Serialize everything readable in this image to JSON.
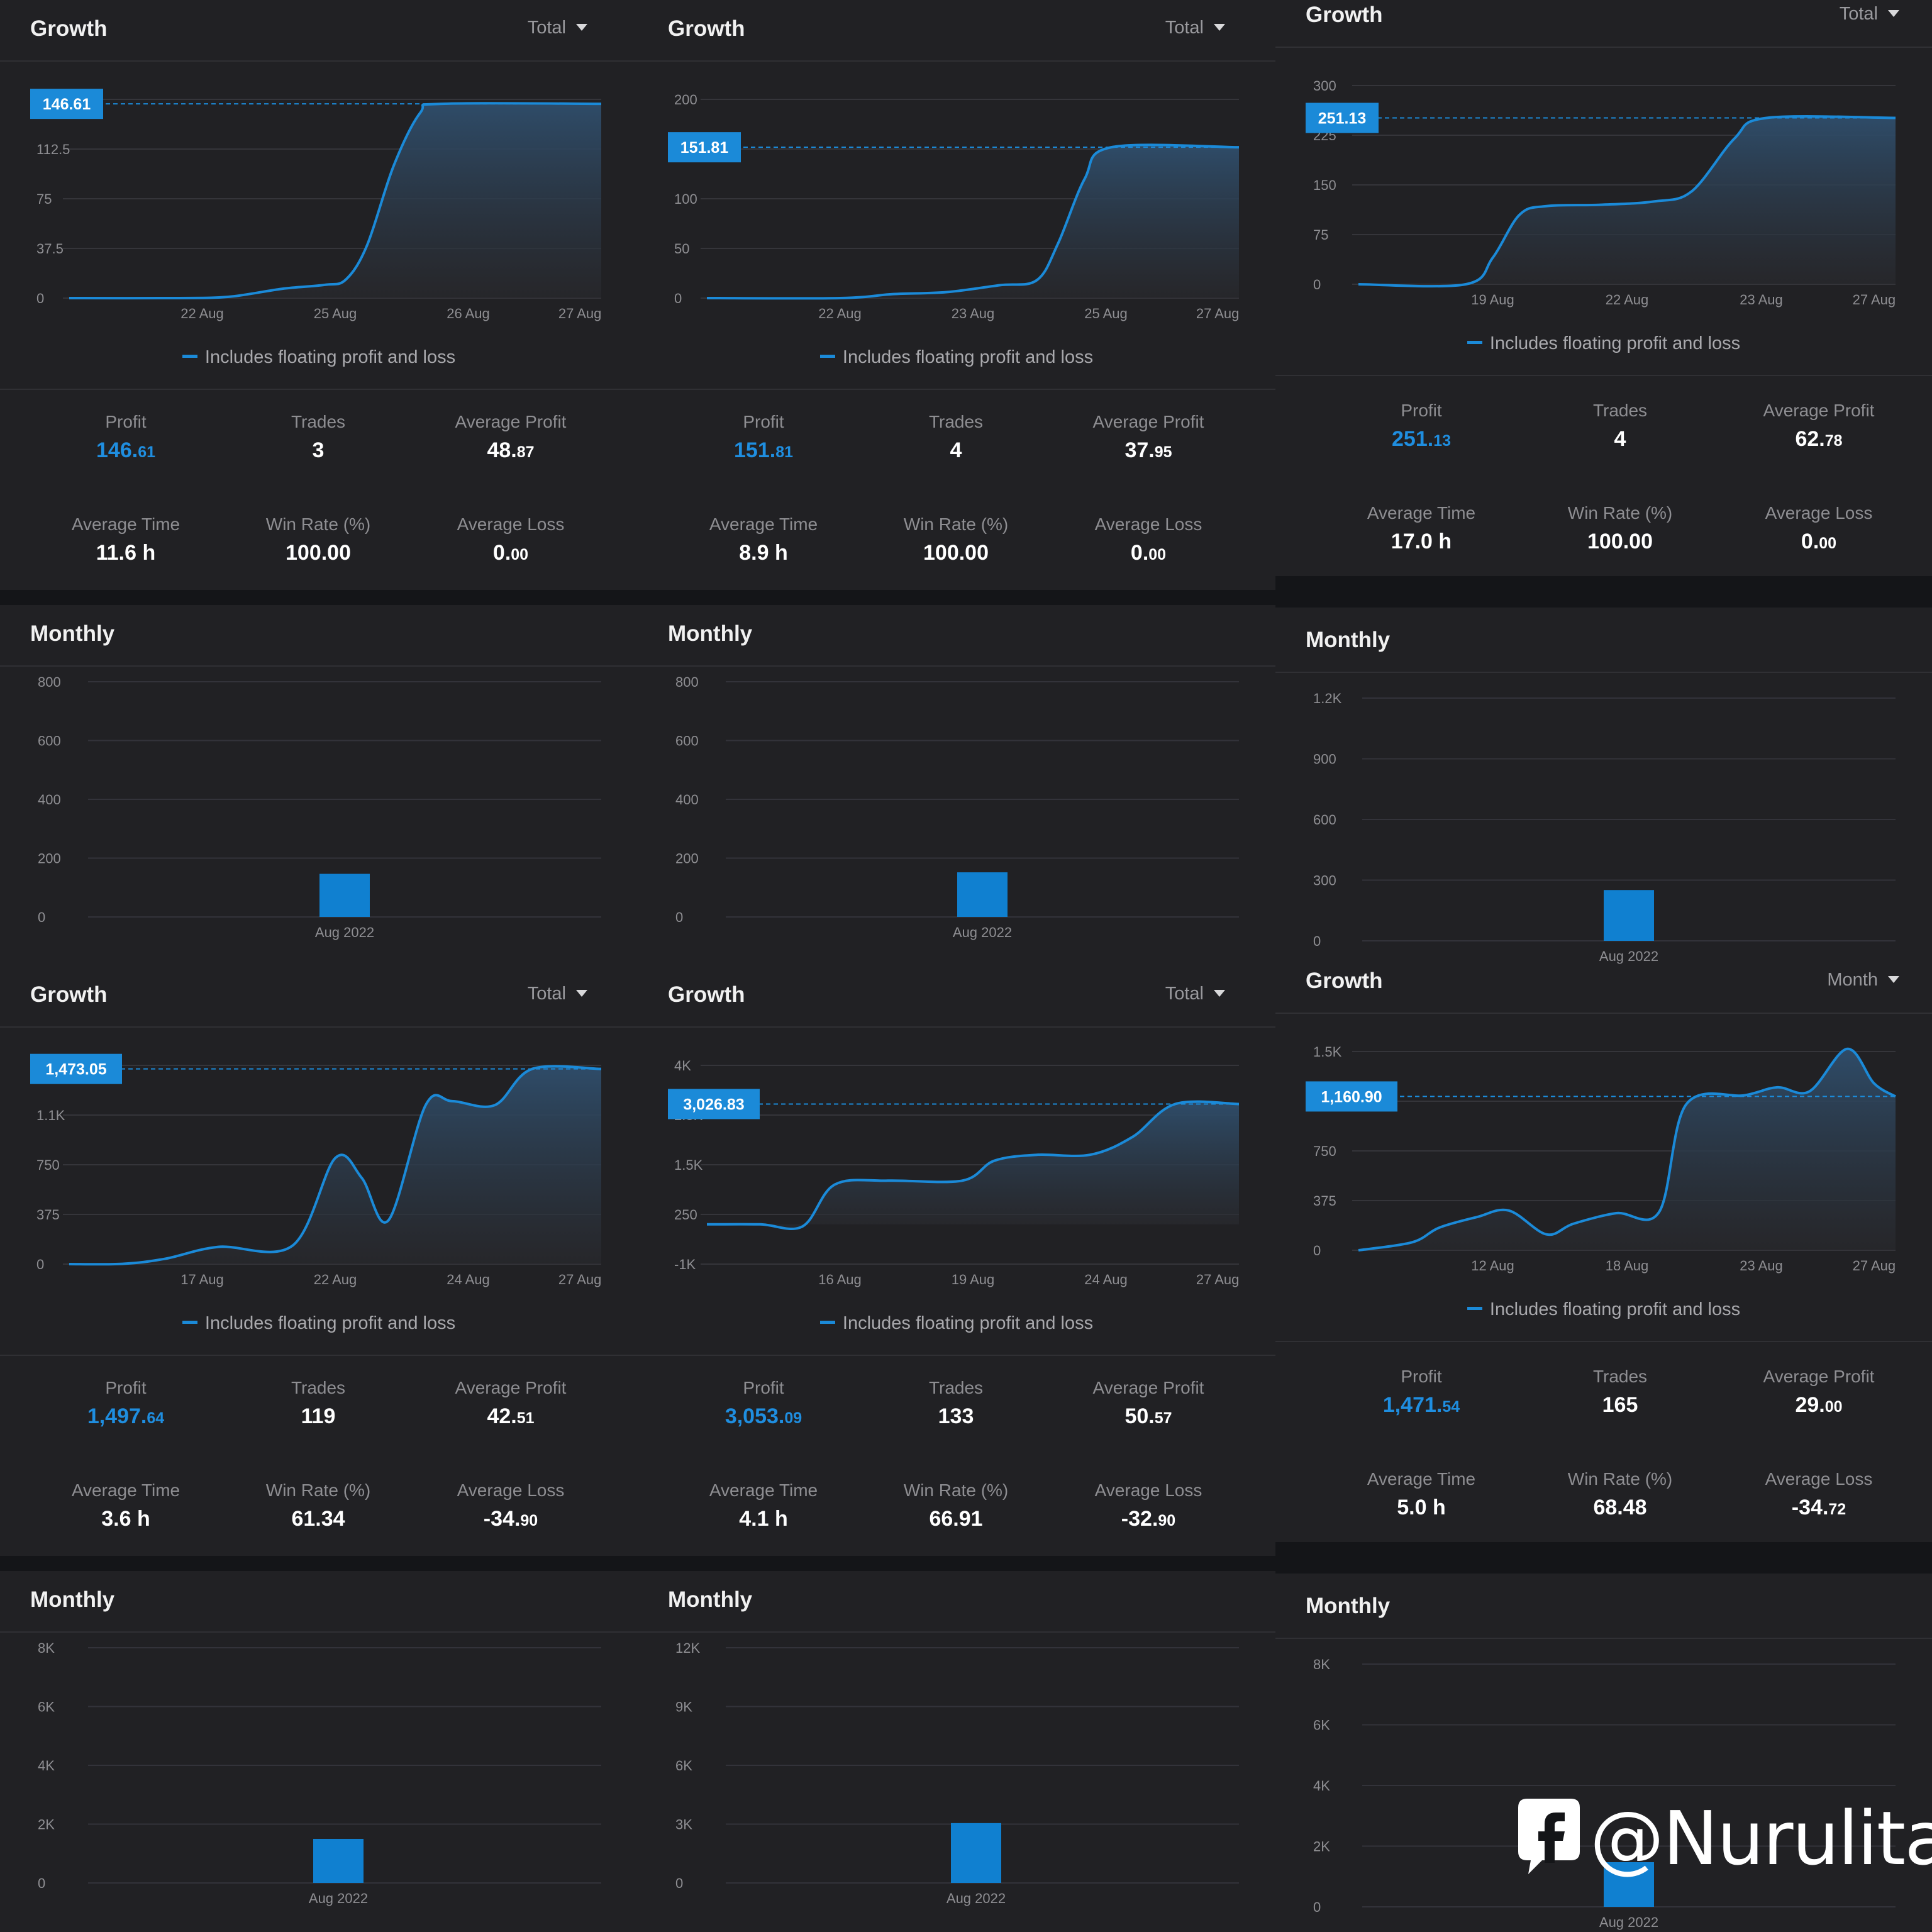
{
  "watermark": {
    "text": "@Nurulita",
    "icon": "facebook-icon"
  },
  "panels": [
    {
      "growth": {
        "title": "Growth",
        "dropdown": "Total",
        "legend": "Includes floating profit and loss",
        "current_label": "146.61",
        "current_value": 146.61,
        "y_ticks": [
          "0",
          "37.5",
          "75",
          "112.5",
          "150"
        ],
        "y_min": 0,
        "y_max": 150,
        "x_ticks": [
          "22 Aug",
          "25 Aug",
          "26 Aug",
          "27 Aug"
        ],
        "series": [
          [
            0,
            0
          ],
          [
            0.2,
            0
          ],
          [
            0.3,
            1
          ],
          [
            0.4,
            7
          ],
          [
            0.48,
            10
          ],
          [
            0.52,
            14
          ],
          [
            0.56,
            40
          ],
          [
            0.61,
            100
          ],
          [
            0.66,
            140
          ],
          [
            0.7,
            146.61
          ],
          [
            1,
            146.61
          ]
        ]
      },
      "stats": [
        {
          "label": "Profit",
          "int": "146.",
          "dec": "61",
          "blue": true
        },
        {
          "label": "Trades",
          "int": "3",
          "dec": ""
        },
        {
          "label": "Average Profit",
          "int": "48.",
          "dec": "87"
        },
        {
          "label": "Average Time",
          "int": "11.6 h",
          "dec": ""
        },
        {
          "label": "Win Rate (%)",
          "int": "100.00",
          "dec": ""
        },
        {
          "label": "Average Loss",
          "int": "0.",
          "dec": "00"
        }
      ],
      "monthly": {
        "title": "Monthly",
        "y_ticks": [
          "0",
          "200",
          "400",
          "600",
          "800"
        ],
        "y_max": 800,
        "categories": [
          "Aug 2022"
        ],
        "values": [
          146.61
        ]
      }
    },
    {
      "growth": {
        "title": "Growth",
        "dropdown": "Total",
        "legend": "Includes floating profit and loss",
        "current_label": "151.81",
        "current_value": 151.81,
        "y_ticks": [
          "0",
          "50",
          "100",
          "150",
          "200"
        ],
        "y_min": 0,
        "y_max": 200,
        "x_ticks": [
          "22 Aug",
          "23 Aug",
          "25 Aug",
          "27 Aug"
        ],
        "series": [
          [
            0,
            0
          ],
          [
            0.25,
            0
          ],
          [
            0.35,
            4
          ],
          [
            0.45,
            6
          ],
          [
            0.55,
            13
          ],
          [
            0.62,
            18
          ],
          [
            0.66,
            55
          ],
          [
            0.71,
            120
          ],
          [
            0.76,
            151.81
          ],
          [
            1,
            151.81
          ]
        ]
      },
      "stats": [
        {
          "label": "Profit",
          "int": "151.",
          "dec": "81",
          "blue": true
        },
        {
          "label": "Trades",
          "int": "4",
          "dec": ""
        },
        {
          "label": "Average Profit",
          "int": "37.",
          "dec": "95"
        },
        {
          "label": "Average Time",
          "int": "8.9 h",
          "dec": ""
        },
        {
          "label": "Win Rate (%)",
          "int": "100.00",
          "dec": ""
        },
        {
          "label": "Average Loss",
          "int": "0.",
          "dec": "00"
        }
      ],
      "monthly": {
        "title": "Monthly",
        "y_ticks": [
          "0",
          "200",
          "400",
          "600",
          "800"
        ],
        "y_max": 800,
        "categories": [
          "Aug 2022"
        ],
        "values": [
          151.81
        ]
      }
    },
    {
      "growth": {
        "title": "Growth",
        "dropdown": "Total",
        "legend": "Includes floating profit and loss",
        "current_label": "251.13",
        "current_value": 251.13,
        "y_ticks": [
          "0",
          "75",
          "150",
          "225",
          "300"
        ],
        "y_min": 0,
        "y_max": 300,
        "x_ticks": [
          "19 Aug",
          "22 Aug",
          "23 Aug",
          "27 Aug"
        ],
        "series": [
          [
            0,
            0
          ],
          [
            0.2,
            0
          ],
          [
            0.25,
            40
          ],
          [
            0.3,
            105
          ],
          [
            0.35,
            118
          ],
          [
            0.45,
            120
          ],
          [
            0.55,
            125
          ],
          [
            0.62,
            140
          ],
          [
            0.7,
            220
          ],
          [
            0.76,
            251.13
          ],
          [
            1,
            251.13
          ]
        ]
      },
      "stats": [
        {
          "label": "Profit",
          "int": "251.",
          "dec": "13",
          "blue": true
        },
        {
          "label": "Trades",
          "int": "4",
          "dec": ""
        },
        {
          "label": "Average Profit",
          "int": "62.",
          "dec": "78"
        },
        {
          "label": "Average Time",
          "int": "17.0 h",
          "dec": ""
        },
        {
          "label": "Win Rate (%)",
          "int": "100.00",
          "dec": ""
        },
        {
          "label": "Average Loss",
          "int": "0.",
          "dec": "00"
        }
      ],
      "monthly": {
        "title": "Monthly",
        "y_ticks": [
          "0",
          "300",
          "600",
          "900",
          "1.2K"
        ],
        "y_max": 1200,
        "categories": [
          "Aug 2022"
        ],
        "values": [
          251.13
        ]
      }
    },
    {
      "growth": {
        "title": "Growth",
        "dropdown": "Total",
        "legend": "Includes floating profit and loss",
        "current_label": "1,473.05",
        "current_value": 1473.05,
        "y_ticks": [
          "0",
          "375",
          "750",
          "1.1K",
          "1.5K"
        ],
        "y_min": 0,
        "y_max": 1500,
        "x_ticks": [
          "17 Aug",
          "22 Aug",
          "24 Aug",
          "27 Aug"
        ],
        "series": [
          [
            0,
            0
          ],
          [
            0.1,
            2
          ],
          [
            0.18,
            40
          ],
          [
            0.28,
            130
          ],
          [
            0.42,
            140
          ],
          [
            0.5,
            800
          ],
          [
            0.55,
            650
          ],
          [
            0.6,
            330
          ],
          [
            0.67,
            1200
          ],
          [
            0.72,
            1230
          ],
          [
            0.8,
            1200
          ],
          [
            0.87,
            1473.05
          ],
          [
            1,
            1473.05
          ]
        ]
      },
      "stats": [
        {
          "label": "Profit",
          "int": "1,497.",
          "dec": "64",
          "blue": true
        },
        {
          "label": "Trades",
          "int": "119",
          "dec": ""
        },
        {
          "label": "Average Profit",
          "int": "42.",
          "dec": "51"
        },
        {
          "label": "Average Time",
          "int": "3.6 h",
          "dec": ""
        },
        {
          "label": "Win Rate (%)",
          "int": "61.34",
          "dec": ""
        },
        {
          "label": "Average Loss",
          "int": "-34.",
          "dec": "90"
        }
      ],
      "monthly": {
        "title": "Monthly",
        "y_ticks": [
          "0",
          "2K",
          "4K",
          "6K",
          "8K"
        ],
        "y_max": 8000,
        "categories": [
          "Aug 2022"
        ],
        "values": [
          1497.64
        ]
      }
    },
    {
      "growth": {
        "title": "Growth",
        "dropdown": "Total",
        "legend": "Includes floating profit and loss",
        "current_label": "3,026.83",
        "current_value": 3026.83,
        "y_ticks": [
          "-1K",
          "250",
          "1.5K",
          "2.8K",
          "4K"
        ],
        "y_min": -1000,
        "y_max": 4000,
        "x_ticks": [
          "16 Aug",
          "19 Aug",
          "24 Aug",
          "27 Aug"
        ],
        "series": [
          [
            0,
            0
          ],
          [
            0.1,
            0
          ],
          [
            0.18,
            -50
          ],
          [
            0.24,
            1000
          ],
          [
            0.34,
            1100
          ],
          [
            0.48,
            1100
          ],
          [
            0.54,
            1600
          ],
          [
            0.62,
            1750
          ],
          [
            0.72,
            1750
          ],
          [
            0.8,
            2200
          ],
          [
            0.88,
            3026.83
          ],
          [
            1,
            3026.83
          ]
        ]
      },
      "stats": [
        {
          "label": "Profit",
          "int": "3,053.",
          "dec": "09",
          "blue": true
        },
        {
          "label": "Trades",
          "int": "133",
          "dec": ""
        },
        {
          "label": "Average Profit",
          "int": "50.",
          "dec": "57"
        },
        {
          "label": "Average Time",
          "int": "4.1 h",
          "dec": ""
        },
        {
          "label": "Win Rate (%)",
          "int": "66.91",
          "dec": ""
        },
        {
          "label": "Average Loss",
          "int": "-32.",
          "dec": "90"
        }
      ],
      "monthly": {
        "title": "Monthly",
        "y_ticks": [
          "0",
          "3K",
          "6K",
          "9K",
          "12K"
        ],
        "y_max": 12000,
        "categories": [
          "Aug 2022"
        ],
        "values": [
          3053.09
        ]
      }
    },
    {
      "growth": {
        "title": "Growth",
        "dropdown": "Month",
        "legend": "Includes floating profit and loss",
        "current_label": "1,160.90",
        "current_value": 1160.9,
        "y_ticks": [
          "0",
          "375",
          "750",
          "1.1K",
          "1.5K"
        ],
        "y_min": 0,
        "y_max": 1500,
        "x_ticks": [
          "12 Aug",
          "18 Aug",
          "23 Aug",
          "27 Aug"
        ],
        "series": [
          [
            0,
            0
          ],
          [
            0.1,
            60
          ],
          [
            0.15,
            170
          ],
          [
            0.22,
            250
          ],
          [
            0.28,
            300
          ],
          [
            0.35,
            120
          ],
          [
            0.4,
            200
          ],
          [
            0.48,
            280
          ],
          [
            0.56,
            290
          ],
          [
            0.61,
            1100
          ],
          [
            0.72,
            1170
          ],
          [
            0.78,
            1230
          ],
          [
            0.84,
            1200
          ],
          [
            0.91,
            1520
          ],
          [
            0.96,
            1260
          ],
          [
            1,
            1160.9
          ]
        ]
      },
      "stats": [
        {
          "label": "Profit",
          "int": "1,471.",
          "dec": "54",
          "blue": true
        },
        {
          "label": "Trades",
          "int": "165",
          "dec": ""
        },
        {
          "label": "Average Profit",
          "int": "29.",
          "dec": "00"
        },
        {
          "label": "Average Time",
          "int": "5.0 h",
          "dec": ""
        },
        {
          "label": "Win Rate (%)",
          "int": "68.48",
          "dec": ""
        },
        {
          "label": "Average Loss",
          "int": "-34.",
          "dec": "72"
        }
      ],
      "monthly": {
        "title": "Monthly",
        "y_ticks": [
          "0",
          "2K",
          "4K",
          "6K",
          "8K"
        ],
        "y_max": 8000,
        "categories": [
          "Aug 2022"
        ],
        "values": [
          1471.54
        ]
      }
    }
  ],
  "chart_data": [
    {
      "type": "line",
      "title": "Growth",
      "x": [
        "22 Aug",
        "25 Aug",
        "26 Aug",
        "27 Aug"
      ],
      "y": [
        0,
        10,
        120,
        146.61
      ],
      "ylim": [
        0,
        150
      ]
    },
    {
      "type": "line",
      "title": "Growth",
      "x": [
        "22 Aug",
        "23 Aug",
        "25 Aug",
        "27 Aug"
      ],
      "y": [
        0,
        6,
        100,
        151.81
      ],
      "ylim": [
        0,
        200
      ]
    },
    {
      "type": "line",
      "title": "Growth",
      "x": [
        "19 Aug",
        "22 Aug",
        "23 Aug",
        "27 Aug"
      ],
      "y": [
        0,
        120,
        200,
        251.13
      ],
      "ylim": [
        0,
        300
      ]
    },
    {
      "type": "line",
      "title": "Growth",
      "x": [
        "17 Aug",
        "22 Aug",
        "24 Aug",
        "27 Aug"
      ],
      "y": [
        40,
        800,
        1200,
        1473.05
      ],
      "ylim": [
        0,
        1500
      ]
    },
    {
      "type": "line",
      "title": "Growth",
      "x": [
        "16 Aug",
        "19 Aug",
        "24 Aug",
        "27 Aug"
      ],
      "y": [
        0,
        1100,
        1750,
        3026.83
      ],
      "ylim": [
        -1000,
        4000
      ]
    },
    {
      "type": "line",
      "title": "Growth",
      "x": [
        "12 Aug",
        "18 Aug",
        "23 Aug",
        "27 Aug"
      ],
      "y": [
        170,
        280,
        1170,
        1160.9
      ],
      "ylim": [
        0,
        1500
      ]
    },
    {
      "type": "bar",
      "title": "Monthly",
      "categories": [
        "Aug 2022"
      ],
      "values": [
        146.61
      ],
      "ylim": [
        0,
        800
      ]
    },
    {
      "type": "bar",
      "title": "Monthly",
      "categories": [
        "Aug 2022"
      ],
      "values": [
        151.81
      ],
      "ylim": [
        0,
        800
      ]
    },
    {
      "type": "bar",
      "title": "Monthly",
      "categories": [
        "Aug 2022"
      ],
      "values": [
        251.13
      ],
      "ylim": [
        0,
        1200
      ]
    },
    {
      "type": "bar",
      "title": "Monthly",
      "categories": [
        "Aug 2022"
      ],
      "values": [
        1497.64
      ],
      "ylim": [
        0,
        8000
      ]
    },
    {
      "type": "bar",
      "title": "Monthly",
      "categories": [
        "Aug 2022"
      ],
      "values": [
        3053.09
      ],
      "ylim": [
        0,
        12000
      ]
    },
    {
      "type": "bar",
      "title": "Monthly",
      "categories": [
        "Aug 2022"
      ],
      "values": [
        1471.54
      ],
      "ylim": [
        0,
        8000
      ]
    }
  ]
}
